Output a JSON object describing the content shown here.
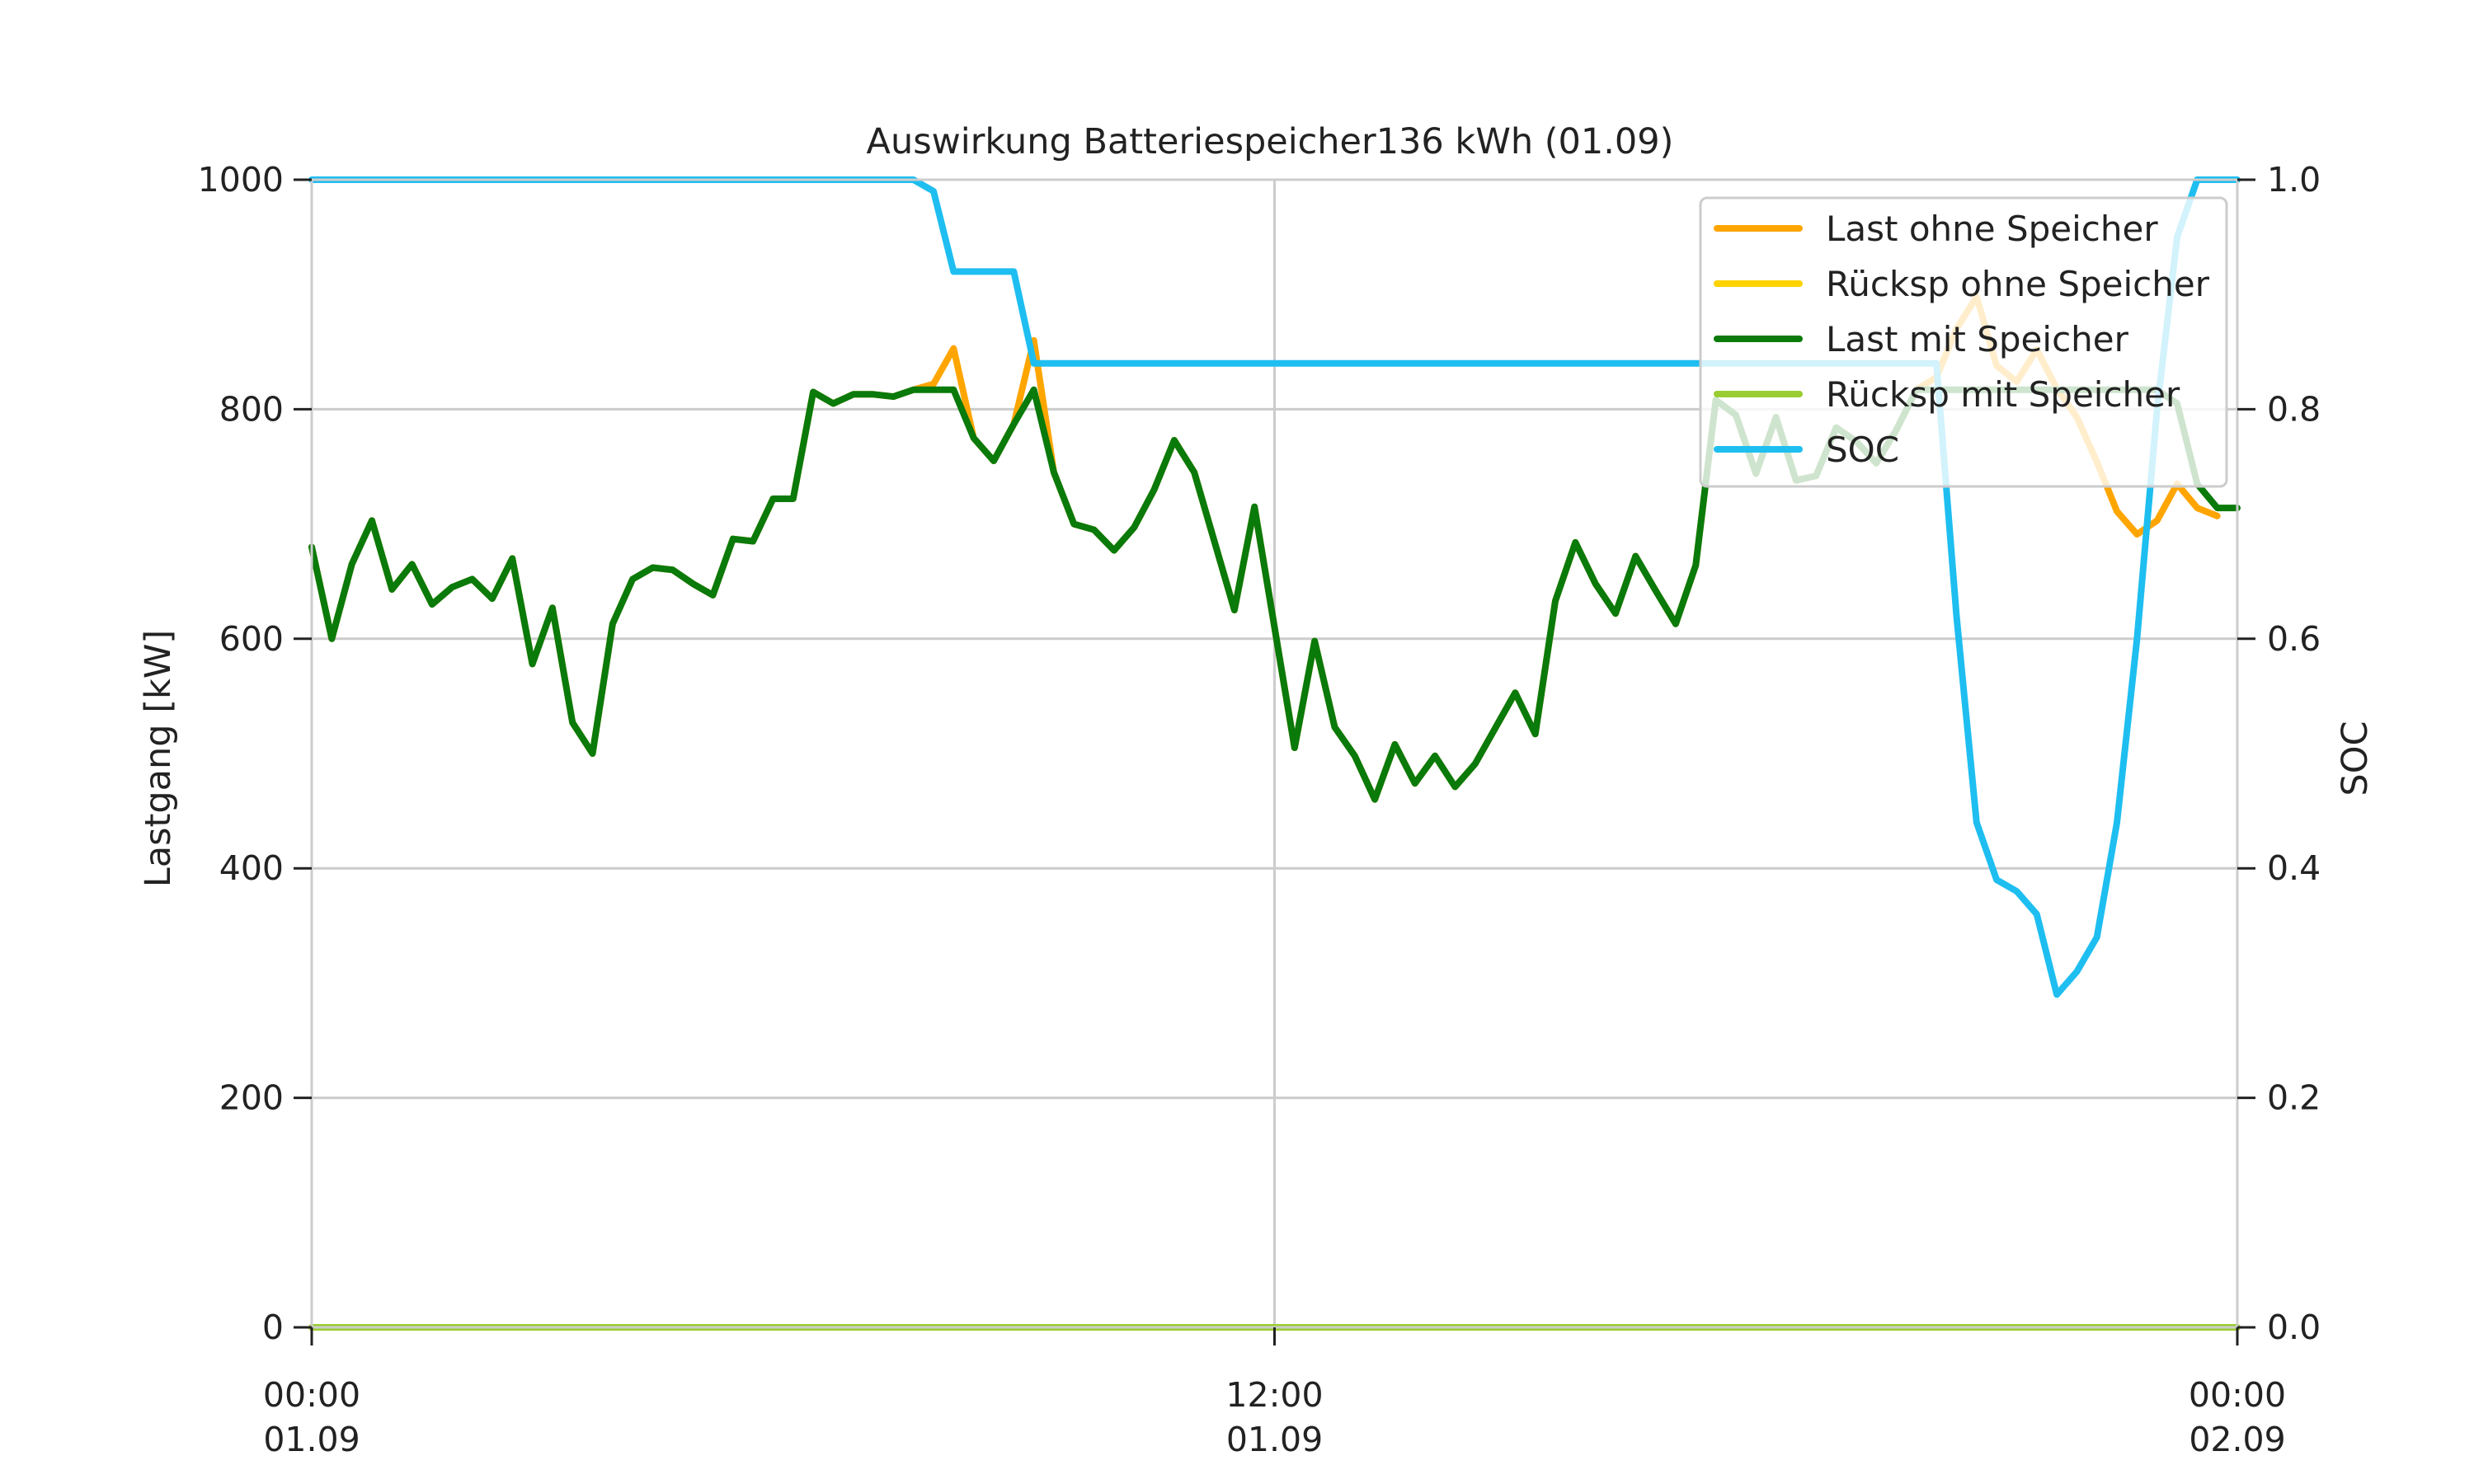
{
  "chart_data": {
    "type": "line",
    "title": "Auswirkung Batteriespeicher136 kWh (01.09)",
    "ylabel": "Lastgang [kW]",
    "y2label": "SOC",
    "xlabel": "",
    "xlim": [
      0,
      96
    ],
    "ylim": [
      0,
      1000
    ],
    "y2lim": [
      0,
      1
    ],
    "grid": true,
    "legend_position": "top-right",
    "x_ticks": [
      {
        "x": 0,
        "label_time": "00:00",
        "label_date": "01.09"
      },
      {
        "x": 48,
        "label_time": "12:00",
        "label_date": "01.09"
      },
      {
        "x": 96,
        "label_time": "00:00",
        "label_date": "02.09"
      }
    ],
    "y_ticks": [
      "0",
      "200",
      "400",
      "600",
      "800",
      "1000"
    ],
    "y2_ticks": [
      "0.0",
      "0.2",
      "0.4",
      "0.6",
      "0.8",
      "1.0"
    ],
    "colors": {
      "last_ohne": "#FFA500",
      "rueck_ohne": "#FFD200",
      "last_mit": "#0A7A0A",
      "rueck_mit": "#9ACD32",
      "soc": "#1EBEF0",
      "grid": "#CCCCCC"
    },
    "series": [
      {
        "name": "Last ohne Speicher",
        "axis": "left",
        "color": "#FFA500",
        "values": [
          680,
          600,
          665,
          703,
          643,
          665,
          630,
          645,
          652,
          635,
          670,
          578,
          627,
          527,
          500,
          613,
          652,
          662,
          660,
          648,
          638,
          687,
          685,
          722,
          722,
          815,
          805,
          813,
          813,
          811,
          817,
          822,
          853,
          775,
          755,
          787,
          860,
          745,
          700,
          695,
          677,
          697,
          730,
          773,
          745,
          685,
          625,
          715,
          610,
          505,
          598,
          523,
          498,
          460,
          508,
          474,
          498,
          471,
          491,
          522,
          553,
          517,
          633,
          684,
          648,
          622,
          672,
          642,
          613,
          664,
          808,
          795,
          744,
          793,
          738,
          742,
          784,
          772,
          753,
          782,
          817,
          828,
          870,
          898,
          838,
          824,
          852,
          818,
          793,
          754,
          711,
          691,
          703,
          735,
          714,
          707
        ]
      },
      {
        "name": "Rücksp ohne Speicher",
        "axis": "left",
        "color": "#FFD200",
        "values": [
          0,
          0,
          0,
          0,
          0,
          0,
          0,
          0,
          0,
          0,
          0,
          0,
          0,
          0,
          0,
          0,
          0,
          0,
          0,
          0,
          0,
          0,
          0,
          0,
          0,
          0,
          0,
          0,
          0,
          0,
          0,
          0,
          0,
          0,
          0,
          0,
          0,
          0,
          0,
          0,
          0,
          0,
          0,
          0,
          0,
          0,
          0,
          0,
          0,
          0,
          0,
          0,
          0,
          0,
          0,
          0,
          0,
          0,
          0,
          0,
          0,
          0,
          0,
          0,
          0,
          0,
          0,
          0,
          0,
          0,
          0,
          0,
          0,
          0,
          0,
          0,
          0,
          0,
          0,
          0,
          0,
          0,
          0,
          0,
          0,
          0,
          0,
          0,
          0,
          0,
          0,
          0,
          0,
          0,
          0,
          0,
          0
        ]
      },
      {
        "name": "Last mit Speicher",
        "axis": "left",
        "color": "#0A7A0A",
        "values": [
          680,
          600,
          665,
          703,
          643,
          665,
          630,
          645,
          652,
          635,
          670,
          578,
          627,
          527,
          500,
          613,
          652,
          662,
          660,
          648,
          638,
          687,
          685,
          722,
          722,
          815,
          805,
          813,
          813,
          811,
          817,
          817,
          817,
          775,
          755,
          787,
          817,
          745,
          700,
          695,
          677,
          697,
          730,
          773,
          745,
          685,
          625,
          715,
          610,
          505,
          598,
          523,
          498,
          460,
          508,
          474,
          498,
          471,
          491,
          522,
          553,
          517,
          633,
          684,
          648,
          622,
          672,
          642,
          613,
          664,
          808,
          795,
          744,
          793,
          738,
          742,
          784,
          772,
          753,
          782,
          817,
          817,
          817,
          817,
          817,
          817,
          817,
          817,
          817,
          817,
          817,
          817,
          817,
          805,
          735,
          714,
          714
        ]
      },
      {
        "name": "Rücksp mit Speicher",
        "axis": "left",
        "color": "#9ACD32",
        "values": [
          0,
          0,
          0,
          0,
          0,
          0,
          0,
          0,
          0,
          0,
          0,
          0,
          0,
          0,
          0,
          0,
          0,
          0,
          0,
          0,
          0,
          0,
          0,
          0,
          0,
          0,
          0,
          0,
          0,
          0,
          0,
          0,
          0,
          0,
          0,
          0,
          0,
          0,
          0,
          0,
          0,
          0,
          0,
          0,
          0,
          0,
          0,
          0,
          0,
          0,
          0,
          0,
          0,
          0,
          0,
          0,
          0,
          0,
          0,
          0,
          0,
          0,
          0,
          0,
          0,
          0,
          0,
          0,
          0,
          0,
          0,
          0,
          0,
          0,
          0,
          0,
          0,
          0,
          0,
          0,
          0,
          0,
          0,
          0,
          0,
          0,
          0,
          0,
          0,
          0,
          0,
          0,
          0,
          0,
          0,
          0,
          0
        ]
      },
      {
        "name": "SOC",
        "axis": "right",
        "color": "#1EBEF0",
        "values": [
          1.0,
          1.0,
          1.0,
          1.0,
          1.0,
          1.0,
          1.0,
          1.0,
          1.0,
          1.0,
          1.0,
          1.0,
          1.0,
          1.0,
          1.0,
          1.0,
          1.0,
          1.0,
          1.0,
          1.0,
          1.0,
          1.0,
          1.0,
          1.0,
          1.0,
          1.0,
          1.0,
          1.0,
          1.0,
          1.0,
          1.0,
          0.99,
          0.92,
          0.92,
          0.92,
          0.92,
          0.84,
          0.84,
          0.84,
          0.84,
          0.84,
          0.84,
          0.84,
          0.84,
          0.84,
          0.84,
          0.84,
          0.84,
          0.84,
          0.84,
          0.84,
          0.84,
          0.84,
          0.84,
          0.84,
          0.84,
          0.84,
          0.84,
          0.84,
          0.84,
          0.84,
          0.84,
          0.84,
          0.84,
          0.84,
          0.84,
          0.84,
          0.84,
          0.84,
          0.84,
          0.84,
          0.84,
          0.84,
          0.84,
          0.84,
          0.84,
          0.84,
          0.84,
          0.84,
          0.84,
          0.84,
          0.84,
          0.62,
          0.44,
          0.39,
          0.38,
          0.36,
          0.29,
          0.31,
          0.34,
          0.44,
          0.6,
          0.8,
          0.95,
          1.0,
          1.0,
          1.0
        ]
      }
    ]
  }
}
